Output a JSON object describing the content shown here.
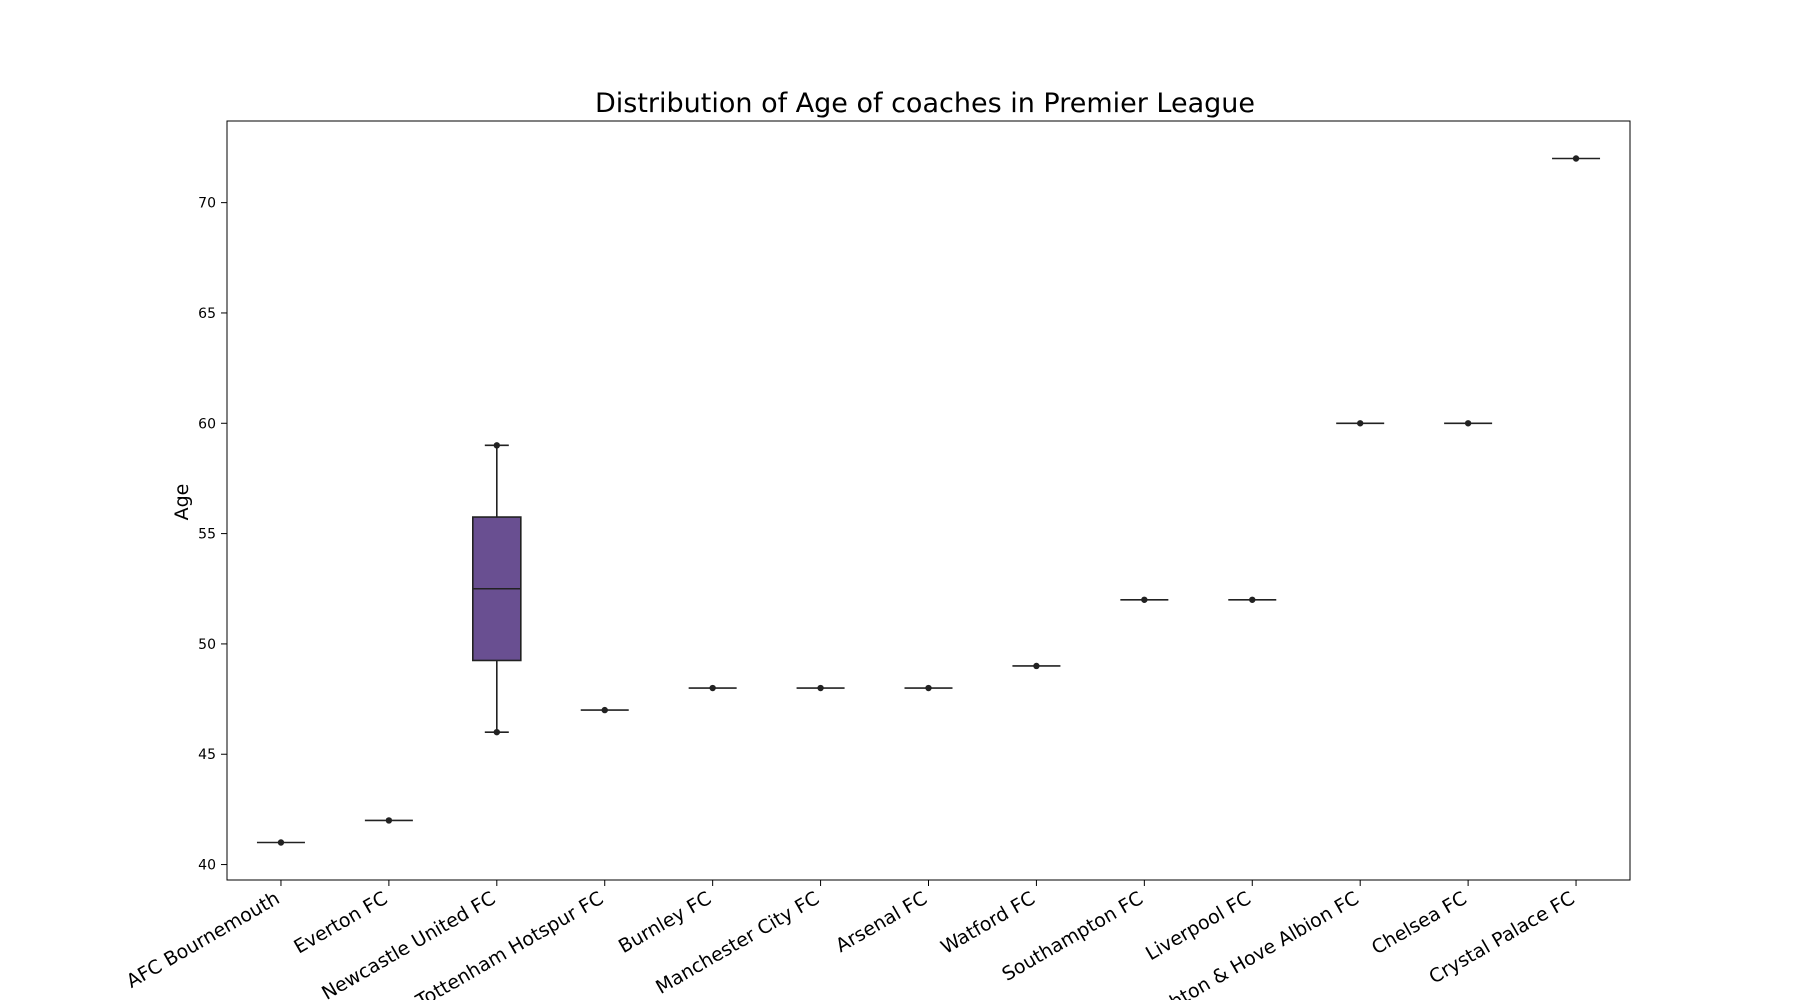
{
  "chart_data": {
    "type": "box",
    "title": "Distribution of Age of coaches in Premier League",
    "xlabel": "",
    "ylabel": "Age",
    "ylim": [
      39.3,
      73.7
    ],
    "yticks": [
      40,
      45,
      50,
      55,
      60,
      65,
      70
    ],
    "grid": false,
    "categories": [
      "AFC Bournemouth",
      "Everton FC",
      "Newcastle United FC",
      "Tottenham Hotspur FC",
      "Burnley FC",
      "Manchester City FC",
      "Arsenal FC",
      "Watford FC",
      "Southampton FC",
      "Liverpool FC",
      "Brighton & Hove Albion FC",
      "Chelsea FC",
      "Crystal Palace FC"
    ],
    "boxes": [
      {
        "min": 41,
        "q1": 41,
        "median": 41,
        "q3": 41,
        "max": 41
      },
      {
        "min": 42,
        "q1": 42,
        "median": 42,
        "q3": 42,
        "max": 42
      },
      {
        "min": 46,
        "q1": 49.25,
        "median": 52.5,
        "q3": 55.75,
        "max": 59
      },
      {
        "min": 47,
        "q1": 47,
        "median": 47,
        "q3": 47,
        "max": 47
      },
      {
        "min": 48,
        "q1": 48,
        "median": 48,
        "q3": 48,
        "max": 48
      },
      {
        "min": 48,
        "q1": 48,
        "median": 48,
        "q3": 48,
        "max": 48
      },
      {
        "min": 48,
        "q1": 48,
        "median": 48,
        "q3": 48,
        "max": 48
      },
      {
        "min": 49,
        "q1": 49,
        "median": 49,
        "q3": 49,
        "max": 49
      },
      {
        "min": 52,
        "q1": 52,
        "median": 52,
        "q3": 52,
        "max": 52
      },
      {
        "min": 52,
        "q1": 52,
        "median": 52,
        "q3": 52,
        "max": 52
      },
      {
        "min": 60,
        "q1": 60,
        "median": 60,
        "q3": 60,
        "max": 60
      },
      {
        "min": 60,
        "q1": 60,
        "median": 60,
        "q3": 60,
        "max": 60
      },
      {
        "min": 72,
        "q1": 72,
        "median": 72,
        "q3": 72,
        "max": 72
      }
    ],
    "box_color": "#694f91",
    "line_color": "#222222",
    "point_color": "#222222"
  }
}
